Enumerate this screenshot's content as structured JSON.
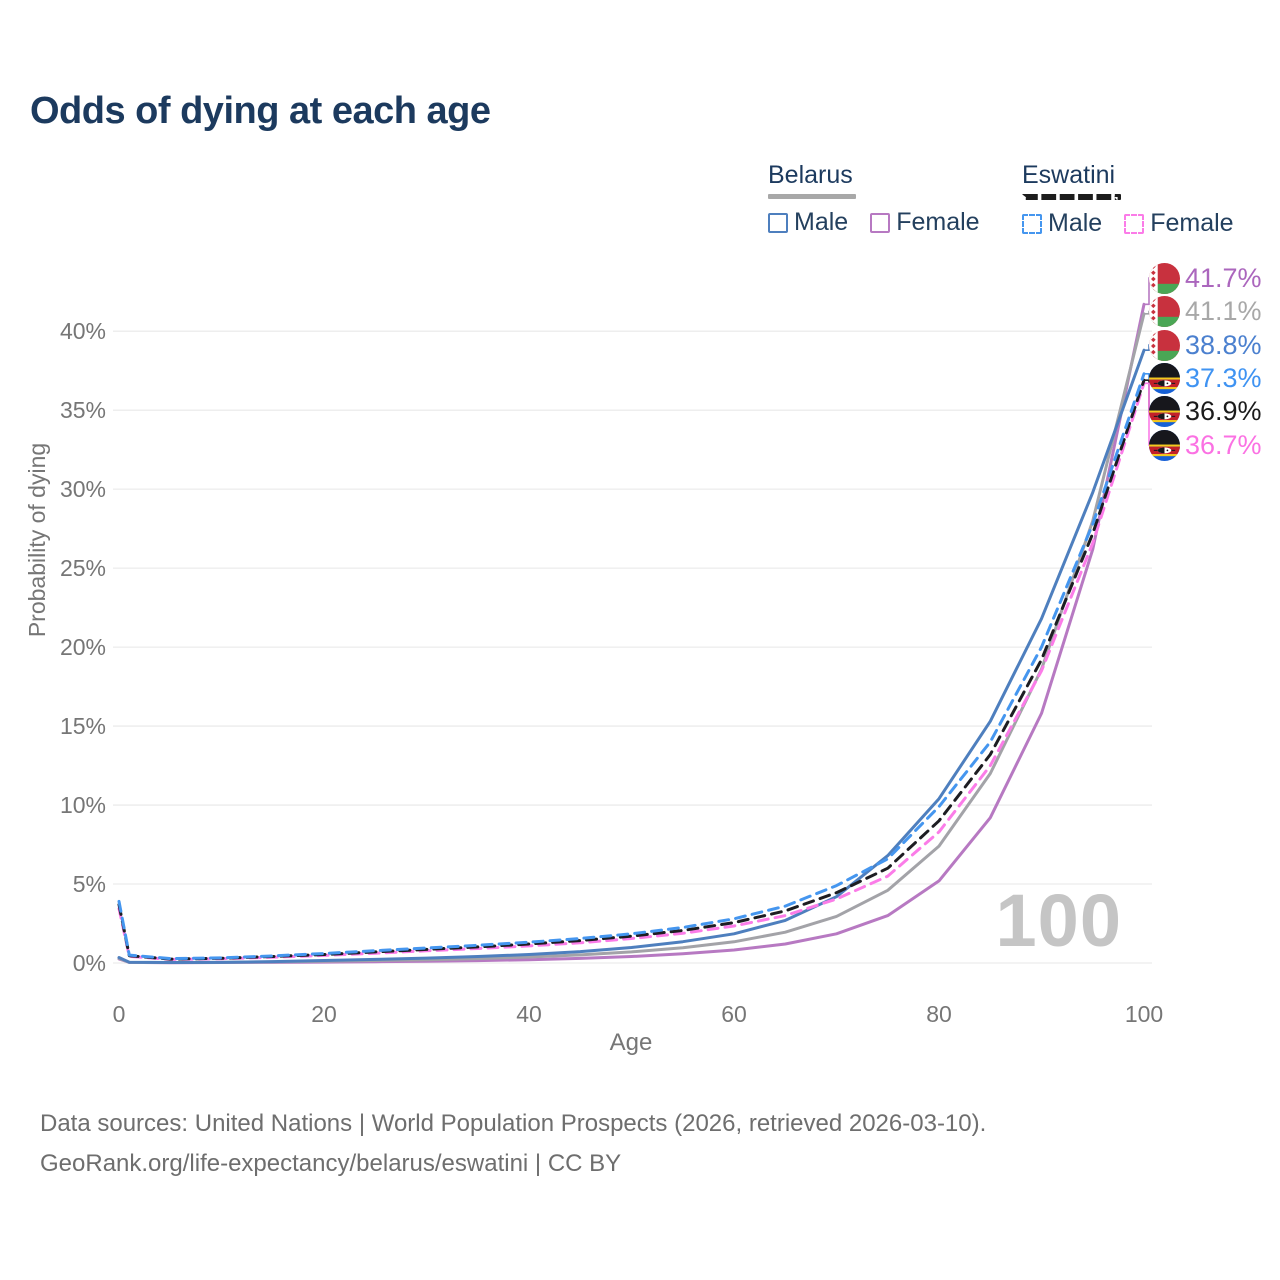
{
  "title": "Odds of dying at each age",
  "watermark": "100",
  "legend": {
    "groups": [
      {
        "country": "Belarus",
        "line_style": "solid",
        "line_color": "#a8a8a8",
        "items": [
          {
            "label": "Male",
            "color": "#4e7fbe"
          },
          {
            "label": "Female",
            "color": "#b779c2"
          }
        ]
      },
      {
        "country": "Eswatini",
        "line_style": "dashed",
        "line_color": "#1d1d1d",
        "items": [
          {
            "label": "Male",
            "color": "#4596ef"
          },
          {
            "label": "Female",
            "color": "#fb7ce8"
          }
        ]
      }
    ]
  },
  "end_labels": [
    {
      "series": "Belarus Female",
      "value": "41.7%",
      "color": "#ab66bd",
      "flag": "belarus"
    },
    {
      "series": "Belarus Both sexes",
      "value": "41.1%",
      "color": "#a8a8a8",
      "flag": "belarus"
    },
    {
      "series": "Belarus Male",
      "value": "38.8%",
      "color": "#4b80cf",
      "flag": "belarus"
    },
    {
      "series": "Eswatini Male",
      "value": "37.3%",
      "color": "#3f93f2",
      "flag": "eswatini"
    },
    {
      "series": "Eswatini Both sexes",
      "value": "36.9%",
      "color": "#1b1b1b",
      "flag": "eswatini"
    },
    {
      "series": "Eswatini Female",
      "value": "36.7%",
      "color": "#fb71e3",
      "flag": "eswatini"
    }
  ],
  "footer": {
    "line1": "Data sources: United Nations | World Population Prospects (2026, retrieved 2026-03-10).",
    "line2": "GeoRank.org/life-expectancy/belarus/eswatini | CC BY"
  },
  "chart_data": {
    "type": "line",
    "title": "Odds of dying at each age",
    "xlabel": "Age",
    "ylabel": "Probability of dying",
    "xlim": [
      0,
      100
    ],
    "ylim": [
      0,
      43
    ],
    "grid": "horizontal",
    "legend_position": "top-right",
    "xticks": [
      "0",
      "20",
      "40",
      "60",
      "80",
      "100"
    ],
    "yticks": [
      "0%",
      "5%",
      "10%",
      "15%",
      "20%",
      "25%",
      "30%",
      "35%",
      "40%"
    ],
    "ages": [
      0,
      1,
      5,
      10,
      15,
      20,
      25,
      30,
      35,
      40,
      45,
      50,
      55,
      60,
      65,
      70,
      75,
      80,
      85,
      90,
      95,
      100
    ],
    "unit": "percent",
    "series": [
      {
        "name": "Belarus Female",
        "country": "Belarus",
        "sex": "Female",
        "color": "#b779c2",
        "dash": null,
        "width": 3,
        "values": [
          0.26,
          0.04,
          0.02,
          0.03,
          0.04,
          0.06,
          0.08,
          0.11,
          0.15,
          0.21,
          0.29,
          0.41,
          0.58,
          0.82,
          1.2,
          1.85,
          3.0,
          5.2,
          9.2,
          15.8,
          26.2,
          41.7
        ]
      },
      {
        "name": "Belarus Both sexes",
        "country": "Belarus",
        "sex": "Both",
        "color": "#a3a3a8",
        "dash": null,
        "width": 3,
        "values": [
          0.3,
          0.04,
          0.03,
          0.04,
          0.07,
          0.11,
          0.16,
          0.21,
          0.28,
          0.38,
          0.51,
          0.7,
          0.97,
          1.34,
          1.95,
          2.95,
          4.6,
          7.4,
          12.0,
          18.6,
          28.0,
          41.1
        ]
      },
      {
        "name": "Belarus Male",
        "country": "Belarus",
        "sex": "Male",
        "color": "#4e7fbe",
        "dash": null,
        "width": 3,
        "values": [
          0.35,
          0.05,
          0.03,
          0.04,
          0.09,
          0.16,
          0.23,
          0.31,
          0.41,
          0.54,
          0.72,
          0.98,
          1.35,
          1.85,
          2.7,
          4.2,
          6.8,
          10.4,
          15.3,
          21.8,
          29.8,
          38.8
        ]
      },
      {
        "name": "Eswatini Female",
        "country": "Eswatini",
        "sex": "Female",
        "color": "#fb7ce8",
        "dash": "10 7",
        "width": 3,
        "values": [
          3.45,
          0.42,
          0.23,
          0.27,
          0.37,
          0.48,
          0.62,
          0.77,
          0.92,
          1.08,
          1.28,
          1.55,
          1.88,
          2.34,
          3.0,
          4.05,
          5.5,
          8.3,
          12.5,
          18.5,
          26.6,
          36.7
        ]
      },
      {
        "name": "Eswatini Both sexes",
        "country": "Eswatini",
        "sex": "Both",
        "color": "#1d1d22",
        "dash": "10 7",
        "width": 3,
        "values": [
          3.7,
          0.46,
          0.25,
          0.3,
          0.41,
          0.54,
          0.7,
          0.86,
          1.02,
          1.2,
          1.42,
          1.7,
          2.06,
          2.56,
          3.3,
          4.45,
          6.0,
          9.0,
          13.2,
          19.2,
          27.2,
          36.9
        ]
      },
      {
        "name": "Eswatini Male",
        "country": "Eswatini",
        "sex": "Male",
        "color": "#4596ef",
        "dash": "10 7",
        "width": 3,
        "values": [
          3.9,
          0.5,
          0.28,
          0.33,
          0.45,
          0.6,
          0.78,
          0.95,
          1.12,
          1.32,
          1.55,
          1.85,
          2.25,
          2.8,
          3.6,
          4.9,
          6.6,
          9.9,
          14.0,
          20.0,
          27.8,
          37.3
        ]
      }
    ]
  }
}
